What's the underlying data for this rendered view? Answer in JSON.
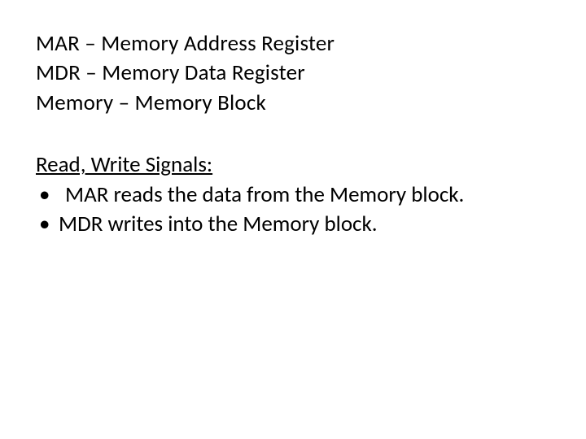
{
  "definitions": {
    "line1": "MAR – Memory Address Register",
    "line2": "MDR – Memory Data Register",
    "line3": "Memory – Memory Block"
  },
  "section": {
    "title": "Read, Write Signals:",
    "bullets": [
      "MAR reads the data from the Memory block.",
      "MDR writes into the Memory block."
    ]
  },
  "colors": {
    "background": "#ffffff",
    "text": "#000000"
  },
  "typography": {
    "font_family": "Calibri",
    "font_size_pt": 20
  }
}
